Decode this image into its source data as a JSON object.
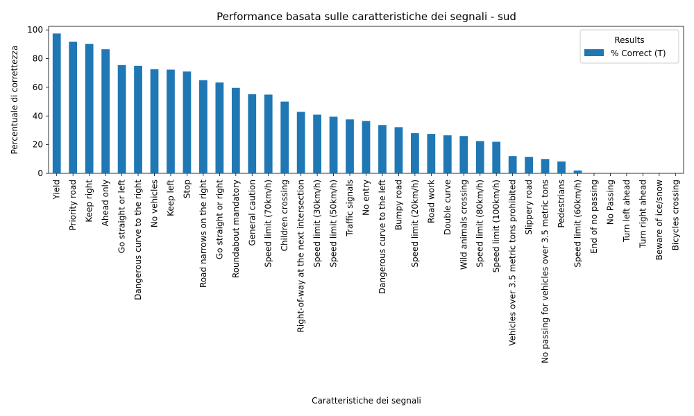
{
  "chart_data": {
    "type": "bar",
    "title": "Performance basata sulle caratteristiche dei segnali - sud",
    "xlabel": "Caratteristiche dei segnali",
    "ylabel": "Percentuale di correttezza",
    "ylim": [
      0,
      102.5
    ],
    "yticks": [
      0,
      20,
      40,
      60,
      80,
      100
    ],
    "grid": false,
    "legend": {
      "title": "Results",
      "placement": "top-right"
    },
    "series": [
      {
        "name": "% Correct (T)",
        "color": "#1f77b4",
        "values": [
          97.5,
          91.8,
          90.3,
          86.5,
          75.5,
          75.0,
          72.6,
          72.3,
          71.0,
          65.0,
          63.4,
          59.6,
          55.2,
          54.9,
          50.0,
          42.9,
          40.9,
          39.5,
          37.6,
          36.5,
          33.7,
          32.2,
          28.0,
          27.5,
          26.5,
          26.0,
          22.5,
          22.0,
          12.0,
          11.5,
          10.0,
          8.3,
          2.0,
          0,
          0,
          0,
          0,
          0,
          0
        ]
      }
    ],
    "categories": [
      "Yield",
      "Priority road",
      "Keep right",
      "Ahead only",
      "Go straight or left",
      "Dangerous curve to the right",
      "No vehicles",
      "Keep left",
      "Stop",
      "Road narrows on the right",
      "Go straight or right",
      "Roundabout mandatory",
      "General caution",
      "Speed limit (70km/h)",
      "Children crossing",
      "Right-of-way at the next intersection",
      "Speed limit (30km/h)",
      "Speed limit (50km/h)",
      "Traffic signals",
      "No entry",
      "Dangerous curve to the left",
      "Bumpy road",
      "Speed limit (20km/h)",
      "Road work",
      "Double curve",
      "Wild animals crossing",
      "Speed limit (80km/h)",
      "Speed limit (100km/h)",
      "Vehicles over 3.5 metric tons prohibited",
      "Slippery road",
      "No passing for vehicles over 3.5 metric tons",
      "Pedestrians",
      "Speed limit (60km/h)",
      "End of no passing",
      "No Passing",
      "Turn left ahead",
      "Turn right ahead",
      "Beware of ice/snow",
      "Bicycles crossing"
    ]
  }
}
